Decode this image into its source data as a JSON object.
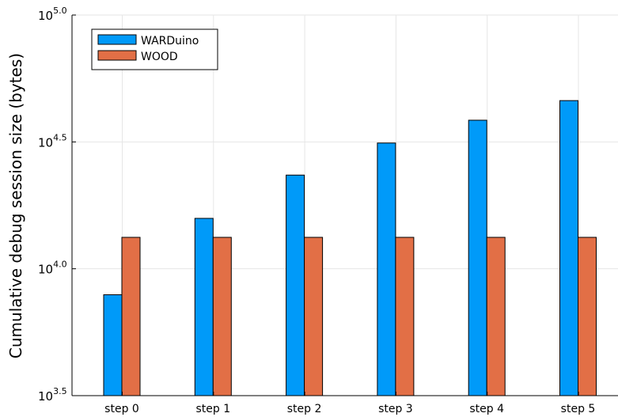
{
  "chart_data": {
    "type": "bar",
    "title": "",
    "ylabel": "Cumulative debug session size (bytes)",
    "xlabel": "",
    "yscale": "log10",
    "ylim": [
      3162.28,
      100000
    ],
    "yticks": [
      {
        "value": 3162.28,
        "base": "10",
        "exp": "3.5"
      },
      {
        "value": 10000,
        "base": "10",
        "exp": "4.0"
      },
      {
        "value": 31622.78,
        "base": "10",
        "exp": "4.5"
      },
      {
        "value": 100000,
        "base": "10",
        "exp": "5.0"
      }
    ],
    "categories": [
      "step 0",
      "step 1",
      "step 2",
      "step 3",
      "step 4",
      "step 5"
    ],
    "series": [
      {
        "name": "WARDuino",
        "color": "#009af9",
        "values": [
          7900,
          15800,
          23400,
          31300,
          38500,
          46000
        ]
      },
      {
        "name": "WOOD",
        "color": "#e26f46",
        "values": [
          13300,
          13300,
          13300,
          13300,
          13300,
          13300
        ]
      }
    ],
    "grid": true,
    "legend_position": "top-left"
  }
}
